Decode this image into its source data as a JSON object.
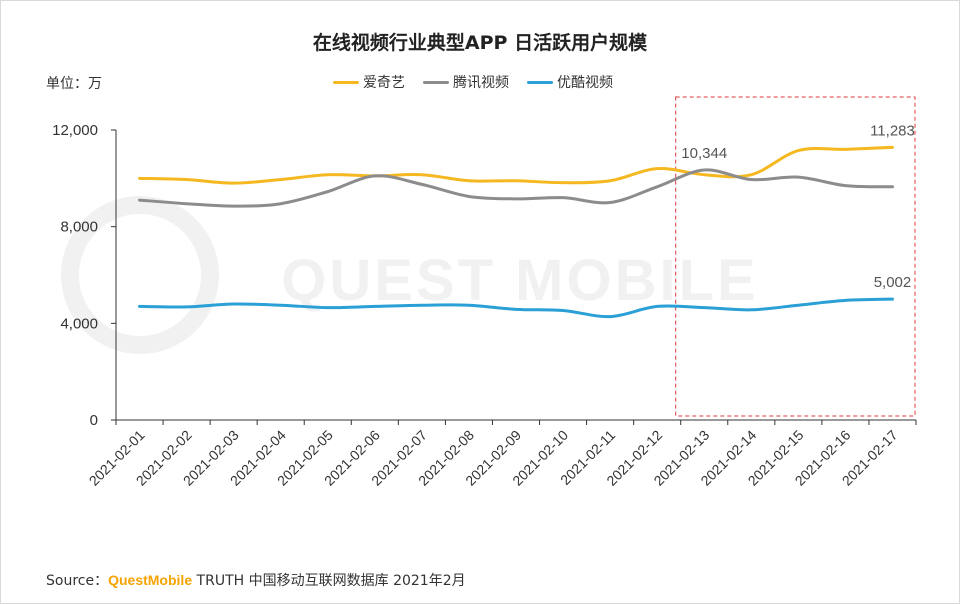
{
  "title": "在线视频行业典型APP 日活跃用户规模",
  "unit_label": "单位：万",
  "source": {
    "prefix": "Source：",
    "brand": "QuestMobile",
    "rest": " TRUTH 中国移动互联网数据库 2021年2月"
  },
  "watermark": "QUEST MOBILE",
  "colors": {
    "iqiyi": "#f5b821",
    "tencent": "#8c8c8c",
    "youku": "#2aa0d6",
    "highlight": "#e0393e",
    "axis": "#333333"
  },
  "chart_data": {
    "type": "line",
    "title": "在线视频行业典型APP 日活跃用户规模",
    "ylabel": "单位：万",
    "ylim": [
      0,
      12000
    ],
    "yticks": [
      "0",
      "4,000",
      "8,000",
      "12,000"
    ],
    "ytick_values": [
      0,
      4000,
      8000,
      12000
    ],
    "grid": false,
    "legend_position": "top-center",
    "categories": [
      "2021-02-01",
      "2021-02-02",
      "2021-02-03",
      "2021-02-04",
      "2021-02-05",
      "2021-02-06",
      "2021-02-07",
      "2021-02-08",
      "2021-02-09",
      "2021-02-10",
      "2021-02-11",
      "2021-02-12",
      "2021-02-13",
      "2021-02-14",
      "2021-02-15",
      "2021-02-16",
      "2021-02-17"
    ],
    "series": [
      {
        "name": "爱奇艺",
        "color": "#f5b821",
        "values": [
          10000,
          9950,
          9800,
          9950,
          10150,
          10100,
          10150,
          9900,
          9900,
          9820,
          9900,
          10400,
          10150,
          10150,
          11150,
          11200,
          11283
        ]
      },
      {
        "name": "腾讯视频",
        "color": "#8c8c8c",
        "values": [
          9100,
          8950,
          8850,
          8950,
          9450,
          10100,
          9750,
          9250,
          9150,
          9200,
          9000,
          9650,
          10344,
          9950,
          10050,
          9700,
          9650
        ]
      },
      {
        "name": "优酷视频",
        "color": "#2aa0d6",
        "values": [
          4700,
          4680,
          4800,
          4750,
          4650,
          4700,
          4750,
          4750,
          4580,
          4530,
          4280,
          4700,
          4650,
          4560,
          4750,
          4950,
          5002
        ]
      }
    ],
    "annotations": [
      {
        "series": 1,
        "index": 12,
        "text": "10,344"
      },
      {
        "series": 0,
        "index": 16,
        "text": "11,283"
      },
      {
        "series": 2,
        "index": 16,
        "text": "5,002"
      }
    ],
    "highlight_from_index": 12,
    "highlight_to_index": 16
  }
}
